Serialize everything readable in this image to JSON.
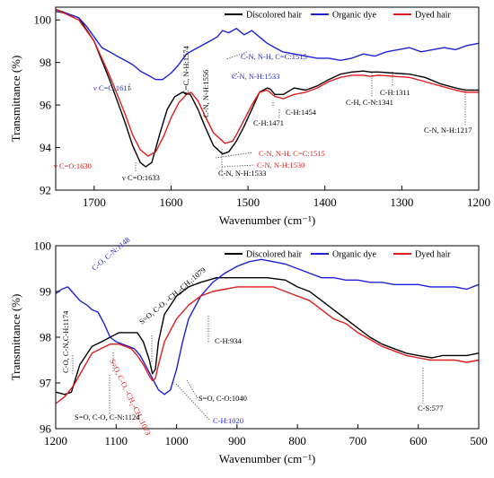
{
  "charts": [
    {
      "type": "line",
      "xlabel": "Wavenumber (cm⁻¹)",
      "ylabel": "Transmittance (%)",
      "xlim": [
        1750,
        1200
      ],
      "ylim": [
        92,
        100.6
      ],
      "xticks": [
        1700,
        1600,
        1500,
        1400,
        1300,
        1200
      ],
      "yticks": [
        92,
        94,
        96,
        98,
        100
      ],
      "legend_position": "top-right",
      "series": [
        {
          "name": "Discolored hair",
          "color": "#000000",
          "x": [
            1750,
            1720,
            1700,
            1680,
            1660,
            1650,
            1640,
            1633,
            1625,
            1615,
            1605,
            1595,
            1585,
            1575,
            1565,
            1556,
            1545,
            1533,
            1525,
            1515,
            1505,
            1495,
            1485,
            1475,
            1471,
            1465,
            1454,
            1440,
            1425,
            1410,
            1395,
            1380,
            1365,
            1350,
            1341,
            1330,
            1311,
            1290,
            1270,
            1250,
            1230,
            1217,
            1200
          ],
          "y": [
            100.5,
            100.1,
            99.0,
            97.2,
            95.2,
            94.1,
            93.3,
            93.1,
            93.3,
            94.6,
            95.8,
            96.4,
            96.6,
            96.5,
            95.8,
            95.0,
            94.1,
            93.7,
            93.8,
            94.3,
            95.0,
            95.8,
            96.6,
            96.8,
            96.75,
            96.5,
            96.5,
            96.8,
            96.7,
            96.9,
            97.2,
            97.45,
            97.55,
            97.6,
            97.55,
            97.55,
            97.5,
            97.45,
            97.3,
            97.0,
            96.8,
            96.7,
            96.7
          ]
        },
        {
          "name": "Organic dye",
          "color": "#1f1fd6",
          "x": [
            1750,
            1735,
            1720,
            1710,
            1700,
            1690,
            1680,
            1670,
            1660,
            1650,
            1640,
            1630,
            1620,
            1611,
            1600,
            1590,
            1580,
            1570,
            1560,
            1550,
            1540,
            1533,
            1525,
            1515,
            1505,
            1495,
            1485,
            1475,
            1465,
            1455,
            1440,
            1425,
            1410,
            1395,
            1380,
            1365,
            1350,
            1335,
            1320,
            1305,
            1290,
            1275,
            1260,
            1245,
            1230,
            1215,
            1200
          ],
          "y": [
            100.4,
            100.3,
            100.1,
            99.7,
            99.2,
            98.7,
            98.5,
            98.3,
            98.1,
            97.9,
            97.6,
            97.4,
            97.2,
            97.2,
            97.5,
            97.9,
            98.4,
            98.6,
            98.8,
            99.0,
            99.2,
            99.5,
            99.4,
            99.6,
            99.3,
            99.5,
            99.2,
            98.9,
            98.7,
            98.5,
            98.4,
            98.3,
            98.2,
            98.2,
            98.1,
            98.2,
            98.4,
            98.3,
            98.5,
            98.6,
            98.7,
            98.5,
            98.6,
            98.7,
            98.6,
            98.8,
            98.9
          ]
        },
        {
          "name": "Dyed hair",
          "color": "#e01b1b",
          "x": [
            1750,
            1720,
            1700,
            1680,
            1660,
            1650,
            1640,
            1630,
            1620,
            1610,
            1600,
            1590,
            1580,
            1574,
            1565,
            1556,
            1545,
            1530,
            1520,
            1515,
            1505,
            1495,
            1485,
            1475,
            1465,
            1454,
            1440,
            1425,
            1410,
            1395,
            1380,
            1365,
            1350,
            1341,
            1330,
            1311,
            1290,
            1270,
            1250,
            1230,
            1217,
            1200
          ],
          "y": [
            100.5,
            100.0,
            99.0,
            97.4,
            95.6,
            94.6,
            93.9,
            93.6,
            93.8,
            94.5,
            95.4,
            96.1,
            96.5,
            96.6,
            96.2,
            95.5,
            94.7,
            94.2,
            94.3,
            94.6,
            95.3,
            96.0,
            96.6,
            96.7,
            96.4,
            96.3,
            96.5,
            96.6,
            96.8,
            97.1,
            97.3,
            97.4,
            97.4,
            97.35,
            97.4,
            97.35,
            97.3,
            97.1,
            96.9,
            96.7,
            96.6,
            96.6
          ]
        }
      ],
      "annotations": [
        {
          "text": "C-N, N-H, C=C:1515",
          "color": "#1f1fd6"
        },
        {
          "text": "C-N, N-H:1533",
          "color": "#1f1fd6"
        },
        {
          "text": "ν C=O:1611",
          "color": "#1f1fd6"
        },
        {
          "text": "C-H:1311",
          "color": "#000000"
        },
        {
          "text": "C-H, C-N:1341",
          "color": "#000000"
        },
        {
          "text": "C-H:1454",
          "color": "#000000"
        },
        {
          "text": "C-H:1471",
          "color": "#000000"
        },
        {
          "text": "C-N, N-H:1217",
          "color": "#000000"
        },
        {
          "text": "C=C, N-H:1574",
          "color": "#000000"
        },
        {
          "text": "C-N, N-H:1556",
          "color": "#000000"
        },
        {
          "text": "C-N, N-H, C=C:1515",
          "color": "#e01b1b"
        },
        {
          "text": "C-N, N-H:1530",
          "color": "#e01b1b"
        },
        {
          "text": "C-N, N-H:1533",
          "color": "#000000"
        },
        {
          "text": "ν C=O:1630",
          "color": "#e01b1b"
        },
        {
          "text": "ν C=O:1633",
          "color": "#000000"
        }
      ]
    },
    {
      "type": "line",
      "xlabel": "Wavenumber (cm⁻¹)",
      "ylabel": "Transmittance (%)",
      "xlim": [
        1200,
        500
      ],
      "ylim": [
        96,
        100
      ],
      "xticks": [
        1200,
        1100,
        1000,
        900,
        800,
        700,
        600,
        500
      ],
      "yticks": [
        96,
        97,
        98,
        99,
        100
      ],
      "legend_position": "top-right",
      "series": [
        {
          "name": "Discolored hair",
          "color": "#000000",
          "x": [
            1200,
            1185,
            1174,
            1160,
            1140,
            1124,
            1110,
            1095,
            1079,
            1065,
            1055,
            1045,
            1040,
            1035,
            1030,
            1020,
            1000,
            980,
            960,
            934,
            910,
            880,
            850,
            820,
            800,
            780,
            760,
            740,
            720,
            700,
            680,
            660,
            640,
            620,
            600,
            577,
            560,
            540,
            520,
            500
          ],
          "y": [
            96.8,
            96.75,
            96.8,
            97.4,
            97.8,
            97.9,
            98.0,
            98.1,
            98.1,
            98.1,
            97.9,
            97.5,
            97.2,
            97.3,
            97.9,
            98.5,
            98.9,
            99.1,
            99.2,
            99.3,
            99.3,
            99.3,
            99.3,
            99.25,
            99.1,
            99.0,
            98.8,
            98.6,
            98.4,
            98.2,
            98.0,
            97.85,
            97.75,
            97.65,
            97.6,
            97.55,
            97.6,
            97.6,
            97.6,
            97.65
          ]
        },
        {
          "name": "Organic dye",
          "color": "#1f1fd6",
          "x": [
            1200,
            1190,
            1180,
            1170,
            1160,
            1148,
            1140,
            1130,
            1120,
            1110,
            1100,
            1090,
            1080,
            1070,
            1060,
            1050,
            1040,
            1030,
            1020,
            1010,
            1000,
            990,
            980,
            960,
            940,
            920,
            900,
            880,
            860,
            840,
            820,
            800,
            780,
            760,
            740,
            720,
            700,
            680,
            660,
            640,
            620,
            600,
            580,
            560,
            540,
            520,
            500
          ],
          "y": [
            98.95,
            99.05,
            99.1,
            98.95,
            98.8,
            98.7,
            98.6,
            98.55,
            98.3,
            98.0,
            97.9,
            97.85,
            97.8,
            97.75,
            97.6,
            97.35,
            97.1,
            96.85,
            96.75,
            96.85,
            97.3,
            97.9,
            98.4,
            98.9,
            99.2,
            99.4,
            99.55,
            99.65,
            99.7,
            99.65,
            99.6,
            99.5,
            99.4,
            99.3,
            99.3,
            99.25,
            99.25,
            99.2,
            99.2,
            99.15,
            99.15,
            99.15,
            99.1,
            99.1,
            99.1,
            99.05,
            99.15
          ]
        },
        {
          "name": "Dyed hair",
          "color": "#e01b1b",
          "x": [
            1200,
            1185,
            1170,
            1155,
            1140,
            1125,
            1110,
            1095,
            1085,
            1075,
            1065,
            1055,
            1045,
            1040,
            1035,
            1030,
            1020,
            1000,
            980,
            960,
            940,
            920,
            900,
            880,
            860,
            840,
            820,
            800,
            780,
            760,
            740,
            720,
            700,
            680,
            660,
            640,
            620,
            600,
            580,
            560,
            540,
            520,
            500
          ],
          "y": [
            96.55,
            96.7,
            96.95,
            97.3,
            97.65,
            97.75,
            97.85,
            97.85,
            97.8,
            97.75,
            97.6,
            97.4,
            97.15,
            97.05,
            97.1,
            97.4,
            97.9,
            98.4,
            98.7,
            98.9,
            99.0,
            99.05,
            99.1,
            99.1,
            99.1,
            99.1,
            99.0,
            98.9,
            98.8,
            98.6,
            98.4,
            98.3,
            98.1,
            97.95,
            97.8,
            97.7,
            97.6,
            97.55,
            97.5,
            97.5,
            97.5,
            97.45,
            97.5
          ]
        }
      ],
      "annotations": [
        {
          "text": "C-O, C-N:1148",
          "color": "#1f1fd6"
        },
        {
          "text": "S=O, C-O, -CH₂-CH₂:1079",
          "color": "#000000"
        },
        {
          "text": "C-O, C-N,C-H:1174",
          "color": "#000000"
        },
        {
          "text": "S=O, C-O, -CH₂-CH₂:1073",
          "color": "#e01b1b"
        },
        {
          "text": "C-H:934",
          "color": "#000000"
        },
        {
          "text": "S=O, C-O:1040",
          "color": "#000000"
        },
        {
          "text": "S=O, C-O, C-N:1124",
          "color": "#000000"
        },
        {
          "text": "C-H:1020",
          "color": "#1f1fd6"
        },
        {
          "text": "C-S:577",
          "color": "#000000"
        }
      ]
    }
  ]
}
